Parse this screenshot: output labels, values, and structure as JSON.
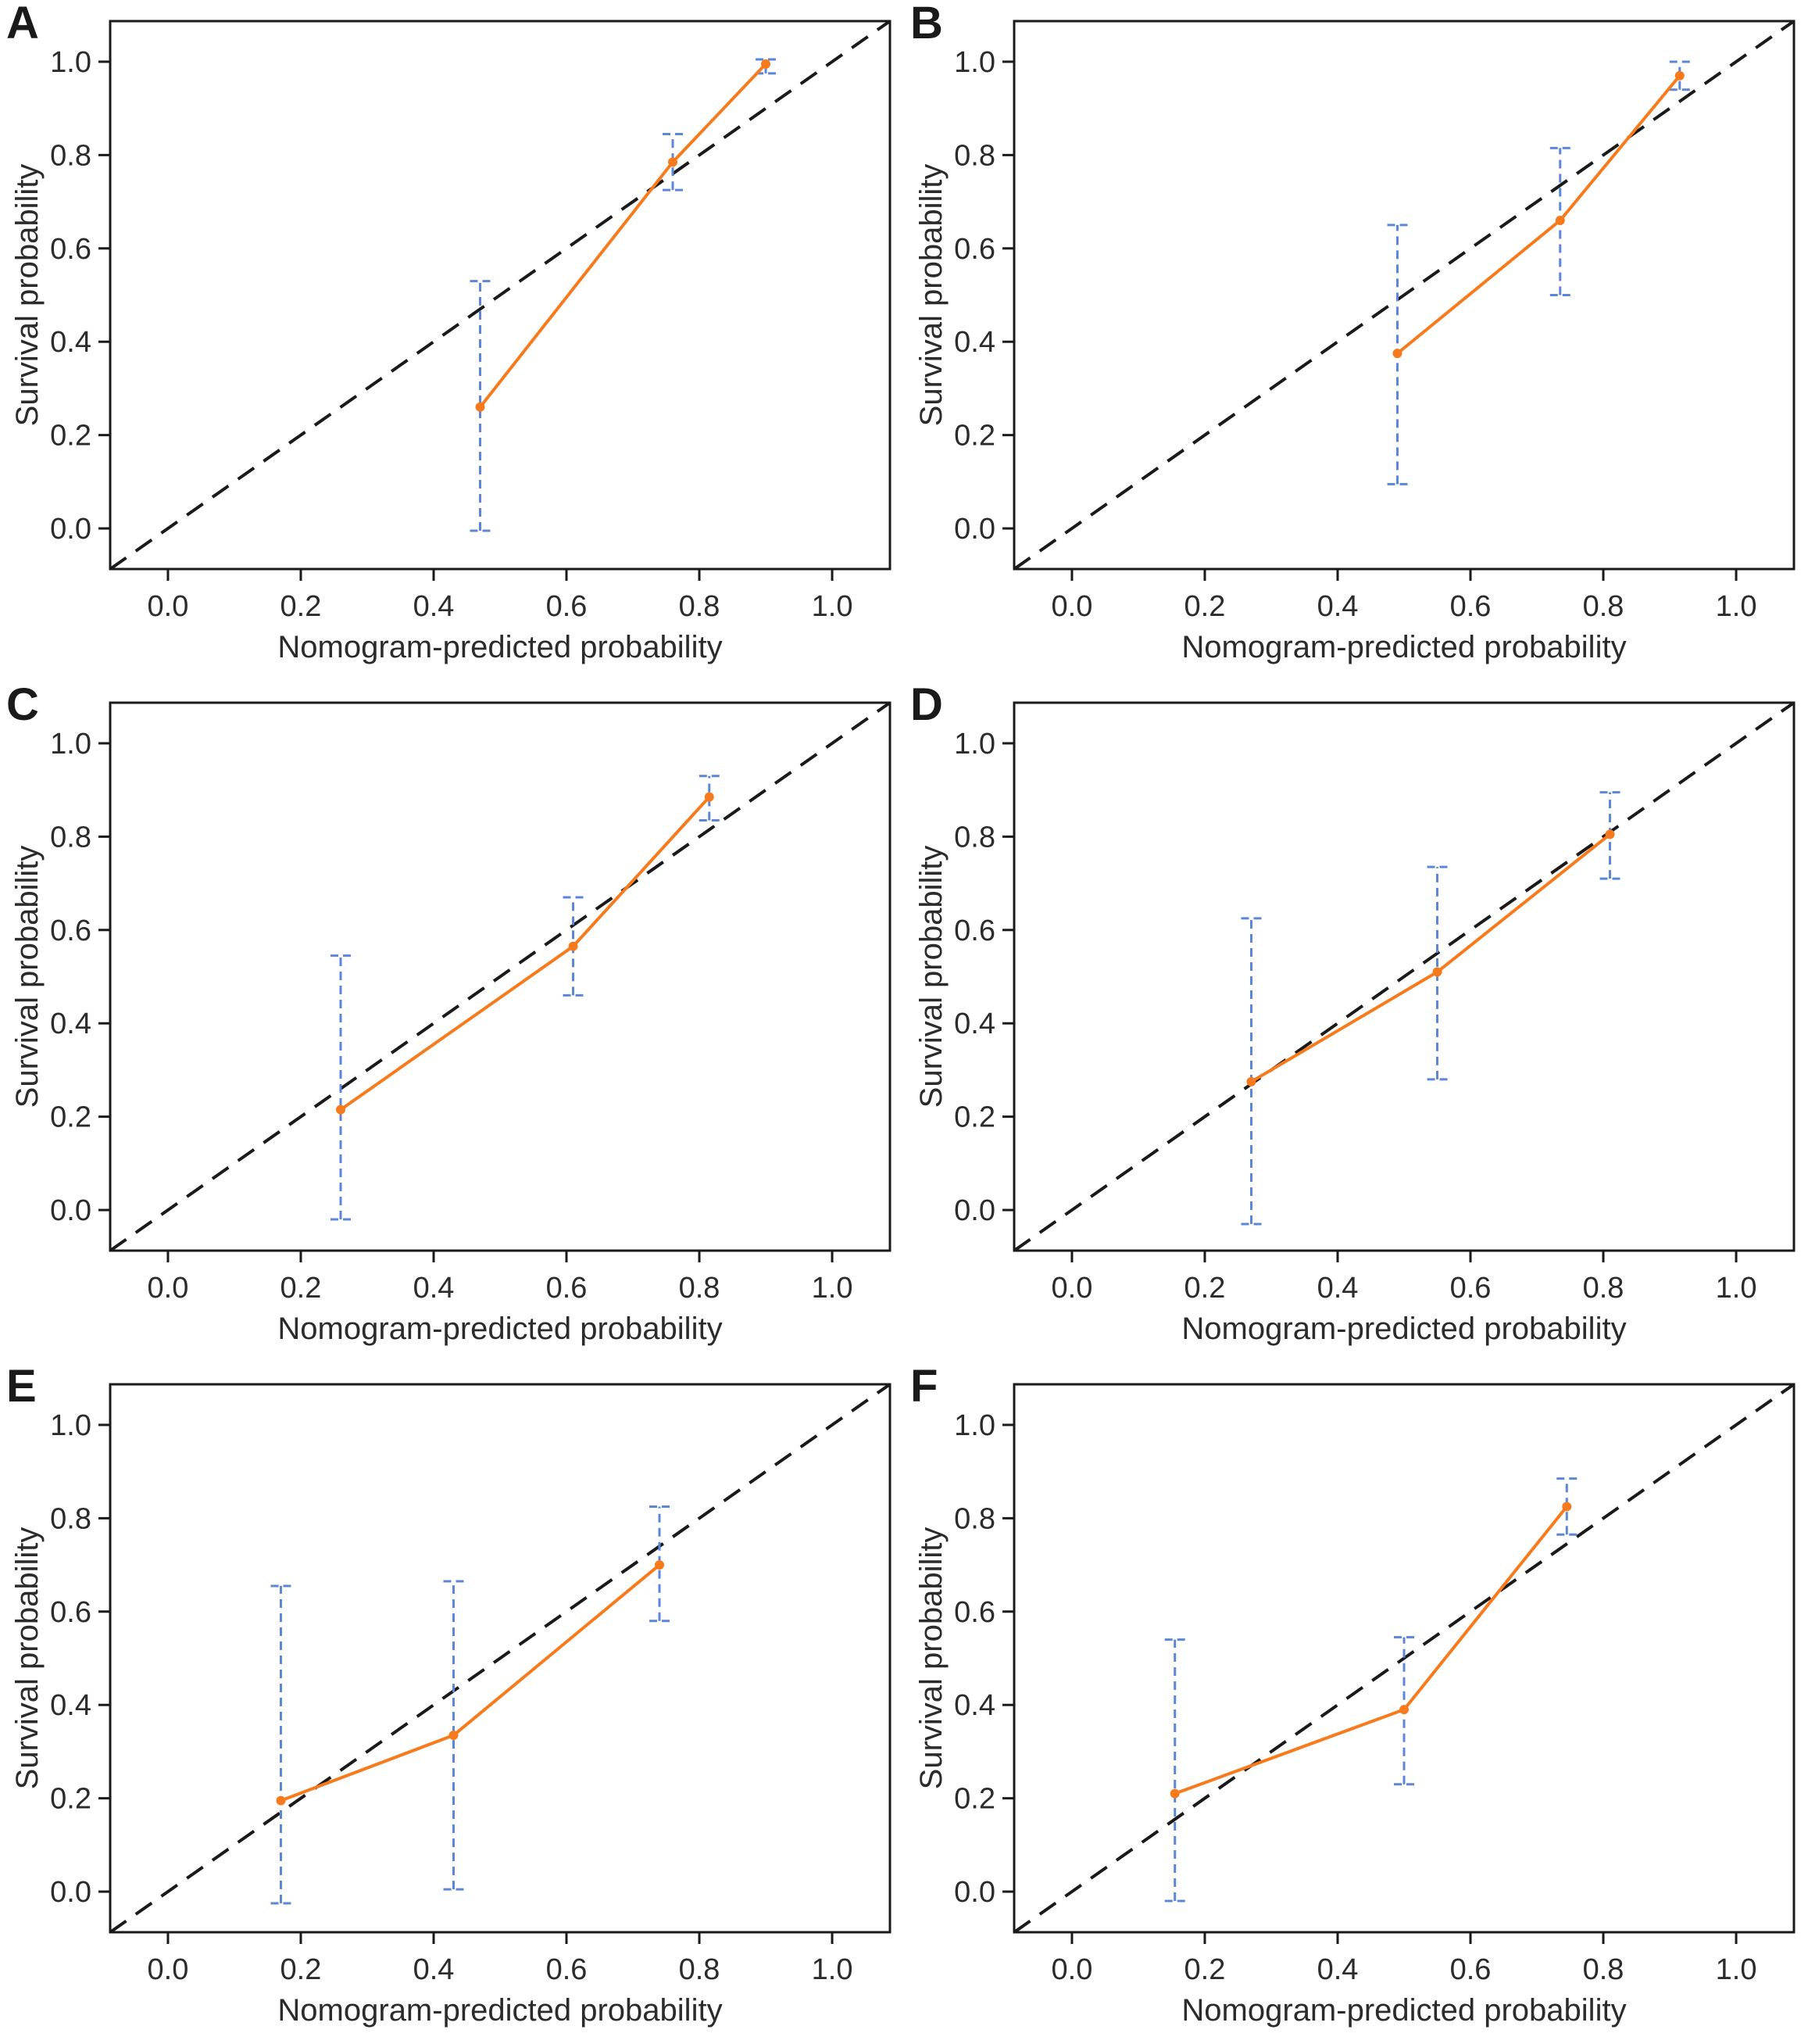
{
  "figure": {
    "background_color": "#FFFFFF",
    "axis_color": "#1A1A1A",
    "text_color": "#2B2B2B",
    "calibration_line_color": "#F77B1C",
    "error_bar_color": "#5C86D6",
    "reference_line_color": "#1A1A1A",
    "xlabel": "Nomogram-predicted probability",
    "ylabel": "Survival probability"
  },
  "chart_data": [
    {
      "type": "line",
      "panel": "A",
      "title": "",
      "xlabel": "Nomogram-predicted probability",
      "ylabel": "Survival probability",
      "xlim": [
        -0.087,
        1.087
      ],
      "ylim": [
        -0.087,
        1.087
      ],
      "x_ticks": [
        0.0,
        0.2,
        0.4,
        0.6,
        0.8,
        1.0
      ],
      "y_ticks": [
        0.0,
        0.2,
        0.4,
        0.6,
        0.8,
        1.0
      ],
      "x_tick_labels": [
        "0.0",
        "0.2",
        "0.4",
        "0.6",
        "0.8",
        "1.0"
      ],
      "y_tick_labels": [
        "0.0",
        "0.2",
        "0.4",
        "0.6",
        "0.8",
        "1.0"
      ],
      "grid": false,
      "legend": false,
      "reference_line": {
        "type": "identity",
        "style": "dashed",
        "color": "#1A1A1A"
      },
      "series": [
        {
          "name": "calibration",
          "color": "#F77B1C",
          "error_bar_color": "#5C86D6",
          "x": [
            0.47,
            0.76,
            0.9
          ],
          "y": [
            0.26,
            0.785,
            0.995
          ],
          "err_low": [
            -0.005,
            0.725,
            0.975
          ],
          "err_high": [
            0.53,
            0.845,
            1.005
          ]
        }
      ]
    },
    {
      "type": "line",
      "panel": "B",
      "title": "",
      "xlabel": "Nomogram-predicted probability",
      "ylabel": "Survival probability",
      "xlim": [
        -0.087,
        1.087
      ],
      "ylim": [
        -0.087,
        1.087
      ],
      "x_ticks": [
        0.0,
        0.2,
        0.4,
        0.6,
        0.8,
        1.0
      ],
      "y_ticks": [
        0.0,
        0.2,
        0.4,
        0.6,
        0.8,
        1.0
      ],
      "x_tick_labels": [
        "0.0",
        "0.2",
        "0.4",
        "0.6",
        "0.8",
        "1.0"
      ],
      "y_tick_labels": [
        "0.0",
        "0.2",
        "0.4",
        "0.6",
        "0.8",
        "1.0"
      ],
      "grid": false,
      "legend": false,
      "reference_line": {
        "type": "identity",
        "style": "dashed",
        "color": "#1A1A1A"
      },
      "series": [
        {
          "name": "calibration",
          "color": "#F77B1C",
          "error_bar_color": "#5C86D6",
          "x": [
            0.49,
            0.735,
            0.915
          ],
          "y": [
            0.375,
            0.66,
            0.97
          ],
          "err_low": [
            0.095,
            0.5,
            0.94
          ],
          "err_high": [
            0.65,
            0.815,
            1.0
          ]
        }
      ]
    },
    {
      "type": "line",
      "panel": "C",
      "title": "",
      "xlabel": "Nomogram-predicted probability",
      "ylabel": "Survival probability",
      "xlim": [
        -0.087,
        1.087
      ],
      "ylim": [
        -0.087,
        1.087
      ],
      "x_ticks": [
        0.0,
        0.2,
        0.4,
        0.6,
        0.8,
        1.0
      ],
      "y_ticks": [
        0.0,
        0.2,
        0.4,
        0.6,
        0.8,
        1.0
      ],
      "x_tick_labels": [
        "0.0",
        "0.2",
        "0.4",
        "0.6",
        "0.8",
        "1.0"
      ],
      "y_tick_labels": [
        "0.0",
        "0.2",
        "0.4",
        "0.6",
        "0.8",
        "1.0"
      ],
      "grid": false,
      "legend": false,
      "reference_line": {
        "type": "identity",
        "style": "dashed",
        "color": "#1A1A1A"
      },
      "series": [
        {
          "name": "calibration",
          "color": "#F77B1C",
          "error_bar_color": "#5C86D6",
          "x": [
            0.26,
            0.61,
            0.815
          ],
          "y": [
            0.215,
            0.565,
            0.885
          ],
          "err_low": [
            -0.02,
            0.46,
            0.835
          ],
          "err_high": [
            0.545,
            0.67,
            0.93
          ]
        }
      ]
    },
    {
      "type": "line",
      "panel": "D",
      "title": "",
      "xlabel": "Nomogram-predicted probability",
      "ylabel": "Survival probability",
      "xlim": [
        -0.087,
        1.087
      ],
      "ylim": [
        -0.087,
        1.087
      ],
      "x_ticks": [
        0.0,
        0.2,
        0.4,
        0.6,
        0.8,
        1.0
      ],
      "y_ticks": [
        0.0,
        0.2,
        0.4,
        0.6,
        0.8,
        1.0
      ],
      "x_tick_labels": [
        "0.0",
        "0.2",
        "0.4",
        "0.6",
        "0.8",
        "1.0"
      ],
      "y_tick_labels": [
        "0.0",
        "0.2",
        "0.4",
        "0.6",
        "0.8",
        "1.0"
      ],
      "grid": false,
      "legend": false,
      "reference_line": {
        "type": "identity",
        "style": "dashed",
        "color": "#1A1A1A"
      },
      "series": [
        {
          "name": "calibration",
          "color": "#F77B1C",
          "error_bar_color": "#5C86D6",
          "x": [
            0.27,
            0.55,
            0.81
          ],
          "y": [
            0.275,
            0.51,
            0.805
          ],
          "err_low": [
            -0.03,
            0.28,
            0.71
          ],
          "err_high": [
            0.625,
            0.735,
            0.895
          ]
        }
      ]
    },
    {
      "type": "line",
      "panel": "E",
      "title": "",
      "xlabel": "Nomogram-predicted probability",
      "ylabel": "Survival probability",
      "xlim": [
        -0.087,
        1.087
      ],
      "ylim": [
        -0.087,
        1.087
      ],
      "x_ticks": [
        0.0,
        0.2,
        0.4,
        0.6,
        0.8,
        1.0
      ],
      "y_ticks": [
        0.0,
        0.2,
        0.4,
        0.6,
        0.8,
        1.0
      ],
      "x_tick_labels": [
        "0.0",
        "0.2",
        "0.4",
        "0.6",
        "0.8",
        "1.0"
      ],
      "y_tick_labels": [
        "0.0",
        "0.2",
        "0.4",
        "0.6",
        "0.8",
        "1.0"
      ],
      "grid": false,
      "legend": false,
      "reference_line": {
        "type": "identity",
        "style": "dashed",
        "color": "#1A1A1A"
      },
      "series": [
        {
          "name": "calibration",
          "color": "#F77B1C",
          "error_bar_color": "#5C86D6",
          "x": [
            0.17,
            0.43,
            0.74
          ],
          "y": [
            0.195,
            0.335,
            0.7
          ],
          "err_low": [
            -0.025,
            0.005,
            0.58
          ],
          "err_high": [
            0.655,
            0.665,
            0.825
          ]
        }
      ]
    },
    {
      "type": "line",
      "panel": "F",
      "title": "",
      "xlabel": "Nomogram-predicted probability",
      "ylabel": "Survival probability",
      "xlim": [
        -0.087,
        1.087
      ],
      "ylim": [
        -0.087,
        1.087
      ],
      "x_ticks": [
        0.0,
        0.2,
        0.4,
        0.6,
        0.8,
        1.0
      ],
      "y_ticks": [
        0.0,
        0.2,
        0.4,
        0.6,
        0.8,
        1.0
      ],
      "x_tick_labels": [
        "0.0",
        "0.2",
        "0.4",
        "0.6",
        "0.8",
        "1.0"
      ],
      "y_tick_labels": [
        "0.0",
        "0.2",
        "0.4",
        "0.6",
        "0.8",
        "1.0"
      ],
      "grid": false,
      "legend": false,
      "reference_line": {
        "type": "identity",
        "style": "dashed",
        "color": "#1A1A1A"
      },
      "series": [
        {
          "name": "calibration",
          "color": "#F77B1C",
          "error_bar_color": "#5C86D6",
          "x": [
            0.155,
            0.5,
            0.745
          ],
          "y": [
            0.21,
            0.39,
            0.825
          ],
          "err_low": [
            -0.02,
            0.23,
            0.765
          ],
          "err_high": [
            0.54,
            0.545,
            0.885
          ]
        }
      ]
    }
  ]
}
